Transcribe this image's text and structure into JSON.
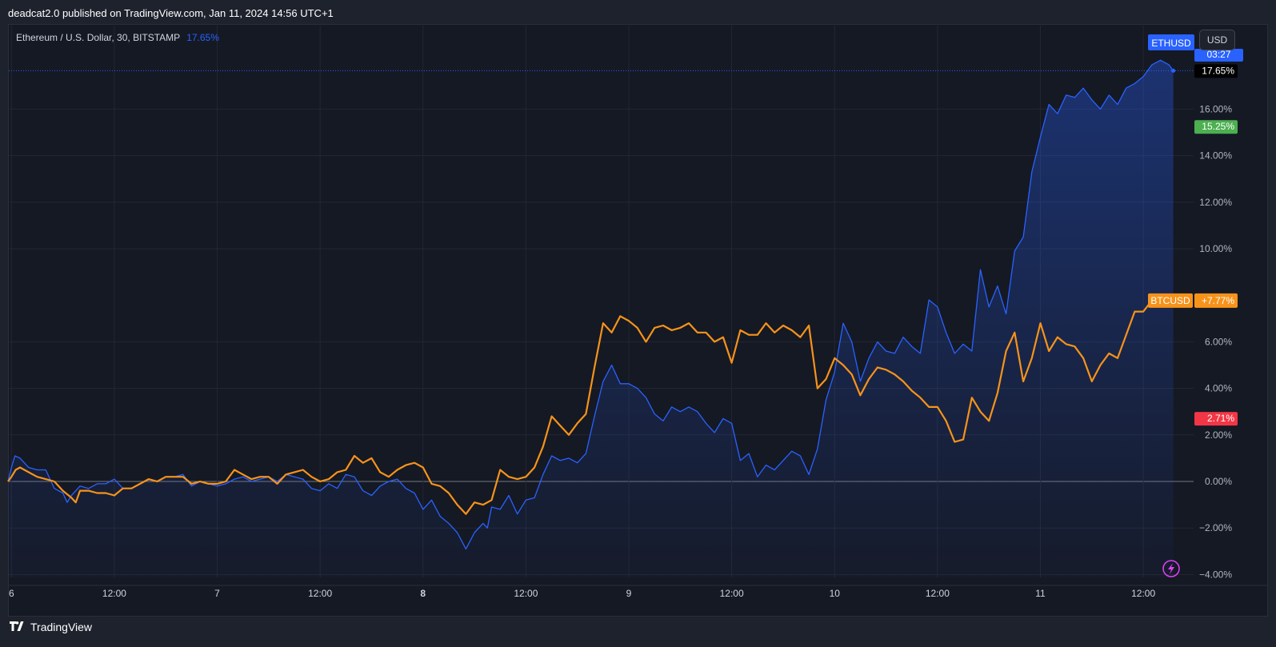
{
  "header": {
    "published": "deadcat2.0 published on TradingView.com, Jan 11, 2024 14:56 UTC+1"
  },
  "legend": {
    "symbol": "Ethereum / U.S. Dollar, 30, BITSTAMP",
    "change": "17.65%"
  },
  "toolbar": {
    "currency_button": "USD"
  },
  "footer": {
    "brand": "TradingView"
  },
  "colors": {
    "background": "#151924",
    "grid": "#242733",
    "eth": "#2962ff",
    "btc": "#f7931a",
    "axis_text": "#b2b5be",
    "green": "#4caf50",
    "red": "#f23645"
  },
  "icons": {
    "footer_logo": "tradingview-logo-icon",
    "flash": "lightning-icon"
  },
  "chart_data": {
    "type": "line",
    "yscale": "percent",
    "ylim": [
      -4.0,
      18.0
    ],
    "y_ticks": [
      {
        "value": 16,
        "label": "16.00%"
      },
      {
        "value": 14,
        "label": "14.00%"
      },
      {
        "value": 12,
        "label": "12.00%"
      },
      {
        "value": 10,
        "label": "10.00%"
      },
      {
        "value": 6,
        "label": "6.00%"
      },
      {
        "value": 4,
        "label": "4.00%"
      },
      {
        "value": 2,
        "label": "2.00%"
      },
      {
        "value": 0,
        "label": "0.00%"
      },
      {
        "value": -2,
        "label": "−2.00%"
      },
      {
        "value": -4,
        "label": "−4.00%"
      }
    ],
    "x_ticks": [
      {
        "t": 0,
        "label": "6",
        "bold": false
      },
      {
        "t": 12,
        "label": "12:00",
        "bold": false
      },
      {
        "t": 24,
        "label": "7",
        "bold": false
      },
      {
        "t": 36,
        "label": "12:00",
        "bold": false
      },
      {
        "t": 48,
        "label": "8",
        "bold": true
      },
      {
        "t": 60,
        "label": "12:00",
        "bold": false
      },
      {
        "t": 72,
        "label": "9",
        "bold": false
      },
      {
        "t": 84,
        "label": "12:00",
        "bold": false
      },
      {
        "t": 96,
        "label": "10",
        "bold": false
      },
      {
        "t": 108,
        "label": "12:00",
        "bold": false
      },
      {
        "t": 120,
        "label": "11",
        "bold": false
      },
      {
        "t": 132,
        "label": "12:00",
        "bold": false
      }
    ],
    "xlim": [
      -0.4,
      136
    ],
    "series": [
      {
        "name": "ETHUSD",
        "label_value": "03:27",
        "last_value_label": "17.65%",
        "points": [
          [
            -0.4,
            0.0
          ],
          [
            0,
            0.6
          ],
          [
            0.4,
            1.1
          ],
          [
            1,
            1.0
          ],
          [
            1.5,
            0.8
          ],
          [
            2,
            0.6
          ],
          [
            3,
            0.5
          ],
          [
            4,
            0.5
          ],
          [
            4.5,
            0.1
          ],
          [
            5,
            -0.3
          ],
          [
            6,
            -0.5
          ],
          [
            6.5,
            -0.9
          ],
          [
            7,
            -0.6
          ],
          [
            8,
            -0.2
          ],
          [
            9,
            -0.3
          ],
          [
            10,
            -0.1
          ],
          [
            11,
            -0.1
          ],
          [
            12,
            0.1
          ],
          [
            13,
            -0.3
          ],
          [
            14,
            -0.3
          ],
          [
            15,
            -0.1
          ],
          [
            16,
            0.1
          ],
          [
            17,
            0.0
          ],
          [
            18,
            0.2
          ],
          [
            19,
            0.2
          ],
          [
            20,
            0.3
          ],
          [
            21,
            -0.2
          ],
          [
            22,
            0.0
          ],
          [
            23,
            -0.1
          ],
          [
            24,
            -0.2
          ],
          [
            25,
            -0.1
          ],
          [
            26,
            0.1
          ],
          [
            27,
            0.2
          ],
          [
            28,
            0.0
          ],
          [
            29,
            0.1
          ],
          [
            30,
            0.2
          ],
          [
            31,
            0.0
          ],
          [
            32,
            0.3
          ],
          [
            33,
            0.2
          ],
          [
            34,
            0.1
          ],
          [
            35,
            -0.3
          ],
          [
            36,
            -0.4
          ],
          [
            37,
            -0.1
          ],
          [
            38,
            -0.3
          ],
          [
            39,
            0.3
          ],
          [
            40,
            0.2
          ],
          [
            41,
            -0.4
          ],
          [
            42,
            -0.6
          ],
          [
            43,
            -0.2
          ],
          [
            44,
            0.0
          ],
          [
            45,
            0.1
          ],
          [
            46,
            -0.3
          ],
          [
            47,
            -0.5
          ],
          [
            48,
            -1.2
          ],
          [
            49,
            -0.8
          ],
          [
            50,
            -1.5
          ],
          [
            51,
            -1.8
          ],
          [
            52,
            -2.2
          ],
          [
            53,
            -2.9
          ],
          [
            54,
            -2.2
          ],
          [
            55,
            -1.8
          ],
          [
            55.5,
            -2.0
          ],
          [
            56,
            -1.1
          ],
          [
            57,
            -1.2
          ],
          [
            58,
            -0.6
          ],
          [
            59,
            -1.4
          ],
          [
            60,
            -0.8
          ],
          [
            61,
            -0.7
          ],
          [
            62,
            0.3
          ],
          [
            63,
            1.1
          ],
          [
            64,
            0.9
          ],
          [
            65,
            1.0
          ],
          [
            66,
            0.8
          ],
          [
            67,
            1.2
          ],
          [
            68,
            2.8
          ],
          [
            69,
            4.3
          ],
          [
            70,
            5.0
          ],
          [
            71,
            4.2
          ],
          [
            72,
            4.2
          ],
          [
            73,
            4.0
          ],
          [
            74,
            3.6
          ],
          [
            75,
            2.9
          ],
          [
            76,
            2.6
          ],
          [
            77,
            3.2
          ],
          [
            78,
            3.0
          ],
          [
            79,
            3.2
          ],
          [
            80,
            3.0
          ],
          [
            81,
            2.5
          ],
          [
            82,
            2.1
          ],
          [
            83,
            2.7
          ],
          [
            84,
            2.5
          ],
          [
            85,
            0.9
          ],
          [
            86,
            1.2
          ],
          [
            87,
            0.2
          ],
          [
            88,
            0.7
          ],
          [
            89,
            0.5
          ],
          [
            90,
            0.9
          ],
          [
            91,
            1.3
          ],
          [
            92,
            1.1
          ],
          [
            93,
            0.3
          ],
          [
            94,
            1.4
          ],
          [
            95,
            3.5
          ],
          [
            96,
            4.7
          ],
          [
            97,
            6.8
          ],
          [
            98,
            6.0
          ],
          [
            99,
            4.3
          ],
          [
            100,
            5.3
          ],
          [
            101,
            6.0
          ],
          [
            102,
            5.6
          ],
          [
            103,
            5.5
          ],
          [
            104,
            6.2
          ],
          [
            105,
            5.8
          ],
          [
            106,
            5.5
          ],
          [
            107,
            7.8
          ],
          [
            108,
            7.5
          ],
          [
            109,
            6.4
          ],
          [
            110,
            5.5
          ],
          [
            111,
            5.9
          ],
          [
            112,
            5.6
          ],
          [
            113,
            9.1
          ],
          [
            114,
            7.5
          ],
          [
            115,
            8.4
          ],
          [
            116,
            7.2
          ],
          [
            117,
            9.9
          ],
          [
            118,
            10.5
          ],
          [
            119,
            13.3
          ],
          [
            120,
            14.8
          ],
          [
            121,
            16.2
          ],
          [
            122,
            15.8
          ],
          [
            123,
            16.6
          ],
          [
            124,
            16.5
          ],
          [
            125,
            16.9
          ],
          [
            126,
            16.4
          ],
          [
            127,
            16.0
          ],
          [
            128,
            16.6
          ],
          [
            129,
            16.2
          ],
          [
            130,
            16.9
          ],
          [
            131,
            17.1
          ],
          [
            132,
            17.4
          ],
          [
            133,
            17.9
          ],
          [
            134,
            18.1
          ],
          [
            135,
            17.9
          ],
          [
            135.5,
            17.65
          ]
        ]
      },
      {
        "name": "BTCUSD",
        "last_value_label": "+7.77%",
        "points": [
          [
            -0.4,
            0.0
          ],
          [
            0,
            0.2
          ],
          [
            0.5,
            0.5
          ],
          [
            1,
            0.6
          ],
          [
            2,
            0.4
          ],
          [
            3,
            0.2
          ],
          [
            4,
            0.1
          ],
          [
            5,
            0.0
          ],
          [
            6,
            -0.4
          ],
          [
            7,
            -0.7
          ],
          [
            7.5,
            -0.9
          ],
          [
            8,
            -0.4
          ],
          [
            9,
            -0.4
          ],
          [
            10,
            -0.5
          ],
          [
            11,
            -0.5
          ],
          [
            12,
            -0.6
          ],
          [
            13,
            -0.3
          ],
          [
            14,
            -0.3
          ],
          [
            15,
            -0.1
          ],
          [
            16,
            0.1
          ],
          [
            17,
            0.0
          ],
          [
            18,
            0.2
          ],
          [
            19,
            0.2
          ],
          [
            20,
            0.2
          ],
          [
            21,
            -0.1
          ],
          [
            22,
            0.0
          ],
          [
            23,
            -0.1
          ],
          [
            24,
            -0.1
          ],
          [
            25,
            0.0
          ],
          [
            26,
            0.5
          ],
          [
            27,
            0.3
          ],
          [
            28,
            0.1
          ],
          [
            29,
            0.2
          ],
          [
            30,
            0.2
          ],
          [
            31,
            -0.1
          ],
          [
            32,
            0.3
          ],
          [
            33,
            0.4
          ],
          [
            34,
            0.5
          ],
          [
            35,
            0.2
          ],
          [
            36,
            0.0
          ],
          [
            37,
            0.1
          ],
          [
            38,
            0.4
          ],
          [
            39,
            0.5
          ],
          [
            40,
            1.1
          ],
          [
            41,
            0.8
          ],
          [
            42,
            1.0
          ],
          [
            43,
            0.4
          ],
          [
            44,
            0.2
          ],
          [
            45,
            0.5
          ],
          [
            46,
            0.7
          ],
          [
            47,
            0.8
          ],
          [
            48,
            0.6
          ],
          [
            49,
            -0.1
          ],
          [
            50,
            -0.2
          ],
          [
            51,
            -0.5
          ],
          [
            52,
            -1.0
          ],
          [
            53,
            -1.4
          ],
          [
            54,
            -0.9
          ],
          [
            55,
            -1.0
          ],
          [
            56,
            -0.8
          ],
          [
            57,
            0.5
          ],
          [
            58,
            0.2
          ],
          [
            59,
            0.1
          ],
          [
            60,
            0.2
          ],
          [
            61,
            0.6
          ],
          [
            62,
            1.5
          ],
          [
            63,
            2.8
          ],
          [
            64,
            2.4
          ],
          [
            65,
            2.0
          ],
          [
            66,
            2.5
          ],
          [
            67,
            2.9
          ],
          [
            68,
            4.9
          ],
          [
            69,
            6.8
          ],
          [
            70,
            6.4
          ],
          [
            71,
            7.1
          ],
          [
            72,
            6.9
          ],
          [
            73,
            6.6
          ],
          [
            74,
            6.0
          ],
          [
            75,
            6.6
          ],
          [
            76,
            6.7
          ],
          [
            77,
            6.5
          ],
          [
            78,
            6.6
          ],
          [
            79,
            6.8
          ],
          [
            80,
            6.4
          ],
          [
            81,
            6.4
          ],
          [
            82,
            6.0
          ],
          [
            83,
            6.2
          ],
          [
            84,
            5.1
          ],
          [
            85,
            6.5
          ],
          [
            86,
            6.3
          ],
          [
            87,
            6.3
          ],
          [
            88,
            6.8
          ],
          [
            89,
            6.4
          ],
          [
            90,
            6.7
          ],
          [
            91,
            6.5
          ],
          [
            92,
            6.2
          ],
          [
            93,
            6.7
          ],
          [
            94,
            4.0
          ],
          [
            95,
            4.4
          ],
          [
            96,
            5.3
          ],
          [
            97,
            5.0
          ],
          [
            98,
            4.6
          ],
          [
            99,
            3.7
          ],
          [
            100,
            4.4
          ],
          [
            101,
            4.9
          ],
          [
            102,
            4.8
          ],
          [
            103,
            4.6
          ],
          [
            104,
            4.3
          ],
          [
            105,
            3.9
          ],
          [
            106,
            3.6
          ],
          [
            107,
            3.2
          ],
          [
            108,
            3.2
          ],
          [
            109,
            2.6
          ],
          [
            110,
            1.7
          ],
          [
            111,
            1.8
          ],
          [
            112,
            3.6
          ],
          [
            113,
            3.0
          ],
          [
            114,
            2.6
          ],
          [
            115,
            3.8
          ],
          [
            116,
            5.6
          ],
          [
            117,
            6.4
          ],
          [
            118,
            4.3
          ],
          [
            119,
            5.3
          ],
          [
            120,
            6.8
          ],
          [
            121,
            5.6
          ],
          [
            122,
            6.2
          ],
          [
            123,
            5.9
          ],
          [
            124,
            5.8
          ],
          [
            125,
            5.3
          ],
          [
            126,
            4.3
          ],
          [
            127,
            5.0
          ],
          [
            128,
            5.5
          ],
          [
            129,
            5.3
          ],
          [
            130,
            6.3
          ],
          [
            131,
            7.3
          ],
          [
            132,
            7.3
          ],
          [
            133,
            7.77
          ]
        ]
      }
    ],
    "price_labels": [
      {
        "text": "17.65%",
        "value": 17.65,
        "bg": "#000000",
        "fg": "#ffffff"
      },
      {
        "text": "15.25%",
        "value": 15.25,
        "bg": "#4caf50",
        "fg": "#ffffff"
      },
      {
        "text": "2.71%",
        "value": 2.71,
        "bg": "#f23645",
        "fg": "#ffffff"
      }
    ]
  }
}
